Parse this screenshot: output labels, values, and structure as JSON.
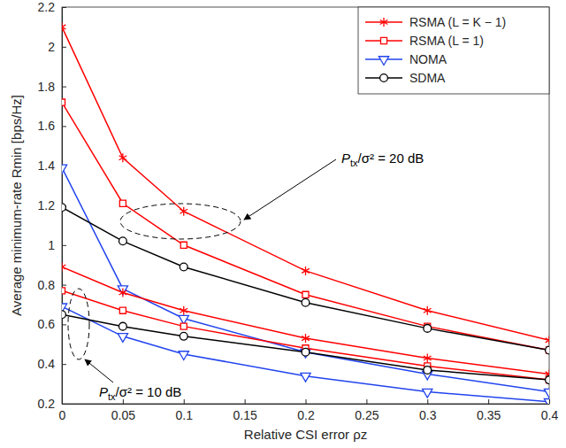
{
  "chart_data": {
    "type": "line",
    "x_label": "Relative CSI error ρz",
    "y_label": "Average minimum-rate Rmin [bps/Hz]",
    "x": [
      0,
      0.05,
      0.1,
      0.2,
      0.3,
      0.4
    ],
    "xlim": [
      0,
      0.4
    ],
    "xticks": [
      0,
      0.05,
      0.1,
      0.15,
      0.2,
      0.25,
      0.3,
      0.35,
      0.4
    ],
    "ylim": [
      0.2,
      2.2
    ],
    "yticks": [
      0.2,
      0.4,
      0.6,
      0.8,
      1,
      1.2,
      1.4,
      1.6,
      1.8,
      2,
      2.2
    ],
    "grid": false,
    "legend": "top-right",
    "series": [
      {
        "name": "RSMA (L = K − 1)",
        "color": "#ff0000",
        "marker": "asterisk",
        "values": [
          2.1,
          1.44,
          1.17,
          0.87,
          0.67,
          0.52
        ]
      },
      {
        "name": "RSMA (L = 1)",
        "color": "#ff0000",
        "marker": "square",
        "values": [
          1.72,
          1.21,
          1.0,
          0.75,
          0.59,
          0.47
        ]
      },
      {
        "name": "NOMA",
        "color": "#2244ee",
        "marker": "triangle-down",
        "values": [
          1.39,
          0.78,
          0.63,
          0.46,
          0.35,
          0.26
        ]
      },
      {
        "name": "SDMA",
        "color": "#000000",
        "marker": "circle",
        "values": [
          1.19,
          1.02,
          0.89,
          0.71,
          0.58,
          0.47
        ]
      },
      {
        "name": "RSMA (L = K − 1)",
        "color": "#ff0000",
        "marker": "asterisk",
        "values": [
          0.89,
          0.76,
          0.67,
          0.53,
          0.43,
          0.35
        ]
      },
      {
        "name": "RSMA (L = 1)",
        "color": "#ff0000",
        "marker": "square",
        "values": [
          0.77,
          0.67,
          0.59,
          0.48,
          0.39,
          0.32
        ]
      },
      {
        "name": "NOMA",
        "color": "#2244ee",
        "marker": "triangle-down",
        "values": [
          0.69,
          0.54,
          0.45,
          0.34,
          0.26,
          0.21
        ]
      },
      {
        "name": "SDMA",
        "color": "#000000",
        "marker": "circle",
        "values": [
          0.65,
          0.59,
          0.54,
          0.46,
          0.37,
          0.32
        ]
      }
    ],
    "annotations": [
      {
        "text": "Ptx/σ² = 20 dB"
      },
      {
        "text": "Ptx/σ² = 10 dB"
      }
    ]
  }
}
